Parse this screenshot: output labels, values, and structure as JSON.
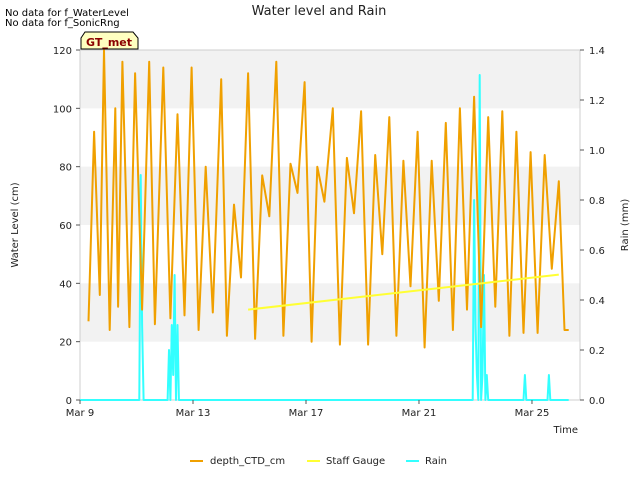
{
  "notes": [
    "No data for f_WaterLevel",
    "No data for f_SonicRng"
  ],
  "site_tag": "GT_met",
  "colors": {
    "depth": "#f0a000",
    "staff": "#ffff33",
    "rain": "#33ffff",
    "band": "#f2f2f2",
    "tag_bg": "#ffffc0",
    "tag_text": "#8b0000"
  },
  "chart_data": {
    "type": "line",
    "title": "Water level and Rain",
    "xlabel": "Time",
    "ylabel": "Water Level (cm)",
    "y2label": "Rain (mm)",
    "xlim": [
      9.0,
      26.7
    ],
    "ylim": [
      0,
      120
    ],
    "y2lim": [
      0,
      1.4
    ],
    "x_tick_values": [
      9,
      13,
      17,
      21,
      25
    ],
    "x_tick_labels": [
      "Mar 9",
      "Mar 13",
      "Mar 17",
      "Mar 21",
      "Mar 25"
    ],
    "y_ticks": [
      0,
      20,
      40,
      60,
      80,
      100,
      120
    ],
    "y2_ticks": [
      0.0,
      0.2,
      0.4,
      0.6,
      0.8,
      1.0,
      1.2,
      1.4
    ],
    "y2_tick_labels": [
      "0.0",
      "0.2",
      "0.4",
      "0.6",
      "0.8",
      "1.0",
      "1.2",
      "1.4"
    ],
    "legend": [
      "depth_CTD_cm",
      "Staff Gauge",
      "Rain"
    ],
    "legend_position": "bottom-center",
    "series": [
      {
        "name": "depth_CTD_cm",
        "axis": "left",
        "x": [
          9.3,
          9.5,
          9.7,
          9.85,
          10.05,
          10.25,
          10.35,
          10.5,
          10.75,
          10.95,
          11.2,
          11.45,
          11.65,
          11.95,
          12.2,
          12.45,
          12.7,
          12.95,
          13.2,
          13.45,
          13.7,
          14.0,
          14.2,
          14.45,
          14.7,
          14.95,
          15.2,
          15.45,
          15.7,
          15.95,
          16.2,
          16.45,
          16.7,
          16.95,
          17.2,
          17.4,
          17.65,
          17.95,
          18.2,
          18.45,
          18.7,
          18.95,
          19.2,
          19.45,
          19.7,
          19.95,
          20.2,
          20.45,
          20.7,
          20.95,
          21.2,
          21.45,
          21.7,
          21.95,
          22.2,
          22.45,
          22.7,
          22.95,
          23.2,
          23.45,
          23.7,
          23.95,
          24.2,
          24.45,
          24.7,
          24.95,
          25.2,
          25.45,
          25.7,
          25.95,
          26.15,
          26.3
        ],
        "y": [
          27,
          92,
          36,
          120,
          24,
          100,
          32,
          116,
          25,
          112,
          31,
          116,
          26,
          114,
          28,
          98,
          29,
          114,
          24,
          80,
          30,
          110,
          22,
          67,
          42,
          112,
          21,
          77,
          63,
          116,
          22,
          81,
          71,
          109,
          20,
          80,
          68,
          100,
          19,
          83,
          64,
          99,
          19,
          84,
          50,
          97,
          22,
          82,
          39,
          92,
          18,
          82,
          34,
          95,
          24,
          100,
          31,
          104,
          25,
          97,
          32,
          99,
          22,
          92,
          23,
          85,
          23,
          84,
          45,
          75,
          24,
          24
        ]
      },
      {
        "name": "Staff Gauge",
        "axis": "left",
        "x": [
          14.95,
          25.95
        ],
        "y": [
          31,
          43
        ]
      },
      {
        "name": "Rain",
        "axis": "right",
        "x": [
          9.0,
          11.1,
          11.15,
          11.2,
          11.25,
          11.3,
          12.1,
          12.15,
          12.2,
          12.25,
          12.3,
          12.35,
          12.4,
          12.45,
          12.5,
          12.55,
          12.6,
          12.65,
          12.7,
          22.9,
          22.95,
          23.0,
          23.05,
          23.1,
          23.15,
          23.2,
          23.25,
          23.3,
          23.35,
          23.4,
          23.45,
          23.5,
          23.55,
          23.6,
          23.65,
          24.7,
          24.75,
          24.8,
          25.55,
          25.6,
          25.65,
          26.3
        ],
        "y": [
          0.0,
          0.0,
          0.9,
          0.3,
          0.0,
          0.0,
          0.0,
          0.2,
          0.0,
          0.3,
          0.1,
          0.5,
          0.0,
          0.3,
          0.0,
          0.0,
          0.0,
          0.0,
          0.0,
          0.0,
          0.8,
          0.3,
          0.1,
          0.0,
          1.3,
          0.0,
          0.1,
          0.5,
          0.0,
          0.1,
          0.0,
          0.0,
          0.0,
          0.0,
          0.0,
          0.0,
          0.1,
          0.0,
          0.0,
          0.1,
          0.0,
          0.0
        ]
      }
    ]
  }
}
